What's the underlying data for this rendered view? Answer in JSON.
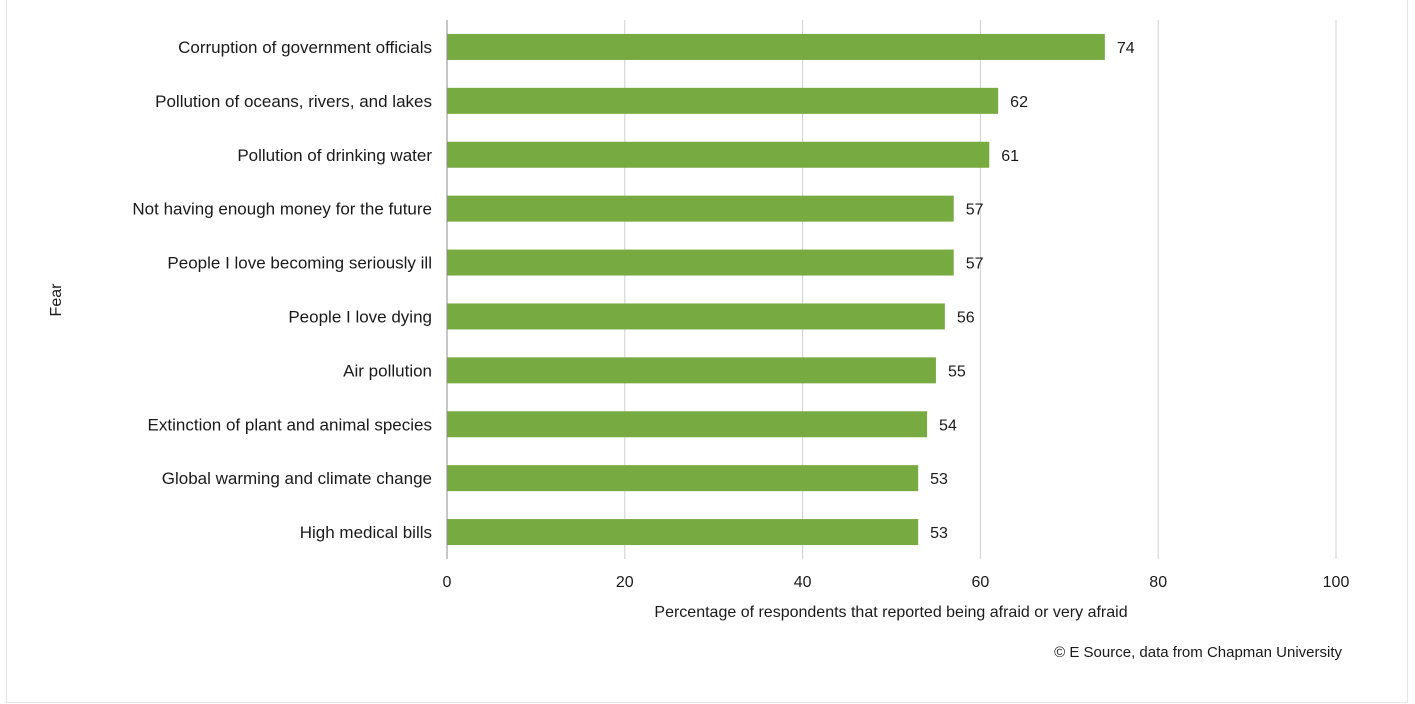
{
  "chart_data": {
    "type": "bar",
    "orientation": "horizontal",
    "categories": [
      "Corruption of government officials",
      "Pollution of oceans, rivers, and lakes",
      "Pollution of drinking water",
      "Not having enough money for the future",
      "People I love becoming seriously ill",
      "People I love dying",
      "Air pollution",
      "Extinction of plant and animal species",
      "Global warming and climate change",
      "High medical bills"
    ],
    "values": [
      74,
      62,
      61,
      57,
      57,
      56,
      55,
      54,
      53,
      53
    ],
    "xlabel": "Percentage of respondents that reported being afraid or very afraid",
    "ylabel": "Fear",
    "xlim": [
      0,
      100
    ],
    "xticks": [
      "0",
      "20",
      "40",
      "60",
      "80",
      "100"
    ],
    "bar_color": "#77ab41",
    "grid": "vertical",
    "data_labels": true,
    "legend": "none"
  },
  "credit": "© E Source, data from Chapman University"
}
